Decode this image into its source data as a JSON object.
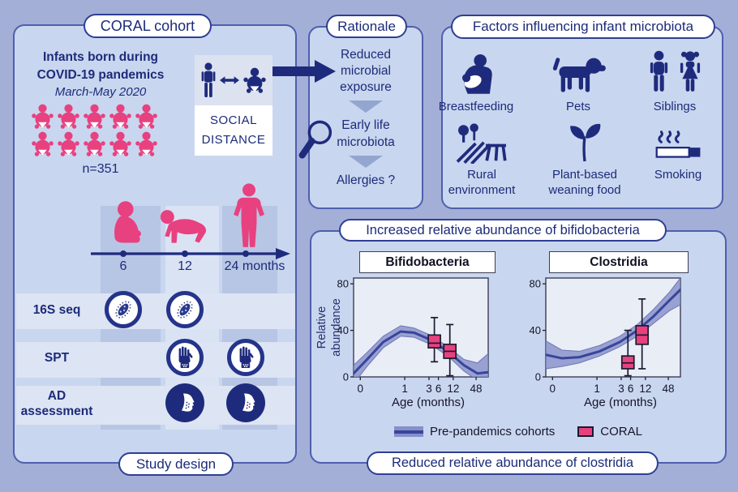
{
  "colors": {
    "background": "#a4afd7",
    "panel": "#c9d6ef",
    "panel_border": "#4d5fae",
    "navy": "#1e2b7d",
    "pink": "#e8417f",
    "plot_bg": "#e9edf6",
    "band": "#8690c8",
    "band_edge": "#6d77b8",
    "curve_line": "#39459b",
    "box_fill": "#e8417f",
    "box_stroke": "#1a1a30",
    "triangle": "#93a6cf"
  },
  "coral_panel": {
    "title": "CORAL cohort",
    "heading": {
      "line1": "Infants born during",
      "line2": "COVID-19 pandemics",
      "line3": "March-May 2020"
    },
    "cohort_size": "n=351",
    "cohort_icon_count": 10,
    "social_distance": {
      "line1": "SOCIAL",
      "line2": "DISTANCE"
    },
    "timeline_ticks": [
      "6",
      "12",
      "24 months"
    ],
    "assessments": [
      {
        "label": "16S seq",
        "icon": "bacteria-icon",
        "timepoints_months": [
          6,
          12
        ]
      },
      {
        "label": "SPT",
        "icon": "hand-icon",
        "timepoints_months": [
          12,
          24
        ]
      },
      {
        "label": "AD assessment",
        "icon": "face-eczema-icon",
        "timepoints_months": [
          12,
          24
        ]
      }
    ],
    "footer": "Study design"
  },
  "rationale_panel": {
    "title": "Rationale",
    "steps": [
      "Reduced microbial exposure",
      "Early life microbiota",
      "Allergies ?"
    ]
  },
  "factors_panel": {
    "title": "Factors influencing infant microbiota",
    "items": [
      {
        "label": "Breastfeeding",
        "icon": "breastfeeding-icon"
      },
      {
        "label": "Pets",
        "icon": "dog-icon"
      },
      {
        "label": "Siblings",
        "icon": "siblings-icon"
      },
      {
        "label": "Rural environment",
        "icon": "rural-environment-icon"
      },
      {
        "label": "Plant-based weaning food",
        "icon": "plant-icon"
      },
      {
        "label": "Smoking",
        "icon": "cigarette-icon"
      }
    ]
  },
  "results_panel": {
    "title_top": "Increased relative abundance of bifidobacteria",
    "title_bottom": "Reduced relative abundance of clostridia",
    "ylabel": "Relative abundance",
    "xlabel": "Age (months)",
    "legend": [
      {
        "label": "Pre-pandemics cohorts",
        "swatch": "band"
      },
      {
        "label": "CORAL",
        "swatch": "box"
      }
    ]
  },
  "chart_data": [
    {
      "type": "line+boxplot",
      "title": "Bifidobacteria",
      "xlabel": "Age (months)",
      "ylabel": "Relative abundance",
      "ylim": [
        0,
        85
      ],
      "yticks": [
        0,
        40,
        80
      ],
      "xticks": {
        "labels": [
          "0",
          "1",
          "3",
          "6",
          "12",
          "48"
        ],
        "fracs": [
          0.05,
          0.38,
          0.56,
          0.63,
          0.74,
          0.91
        ]
      },
      "curve": {
        "name": "Pre-pandemics cohorts",
        "points": [
          [
            0.0,
            3,
            -6,
            10
          ],
          [
            0.1,
            15,
            9,
            21
          ],
          [
            0.22,
            30,
            25,
            35
          ],
          [
            0.35,
            39,
            35,
            44
          ],
          [
            0.45,
            38,
            34,
            42
          ],
          [
            0.57,
            32,
            28,
            36
          ],
          [
            0.7,
            22,
            18,
            26
          ],
          [
            0.82,
            10,
            5,
            15
          ],
          [
            0.92,
            3,
            -3,
            12
          ],
          [
            1.0,
            4,
            -4,
            20
          ]
        ]
      },
      "boxplots": {
        "name": "CORAL",
        "items": [
          {
            "age_months": 6,
            "x_frac": 0.6,
            "whisker_low": 13,
            "q1": 25,
            "median": 29,
            "q3": 36,
            "whisker_high": 51
          },
          {
            "age_months": 12,
            "x_frac": 0.715,
            "whisker_low": 1,
            "q1": 16,
            "median": 22,
            "q3": 28,
            "whisker_high": 45
          }
        ]
      }
    },
    {
      "type": "line+boxplot",
      "title": "Clostridia",
      "xlabel": "Age (months)",
      "ylabel": "Relative abundance",
      "ylim": [
        0,
        85
      ],
      "yticks": [
        0,
        40,
        80
      ],
      "xticks": {
        "labels": [
          "0",
          "1",
          "3",
          "6",
          "12",
          "48"
        ],
        "fracs": [
          0.05,
          0.38,
          0.56,
          0.63,
          0.74,
          0.91
        ]
      },
      "curve": {
        "name": "Pre-pandemics cohorts",
        "points": [
          [
            0.0,
            19,
            7,
            31
          ],
          [
            0.12,
            16,
            9,
            23
          ],
          [
            0.25,
            17,
            12,
            22
          ],
          [
            0.4,
            22,
            18,
            27
          ],
          [
            0.55,
            30,
            26,
            35
          ],
          [
            0.68,
            40,
            35,
            45
          ],
          [
            0.8,
            52,
            46,
            58
          ],
          [
            0.92,
            66,
            57,
            73
          ],
          [
            1.0,
            75,
            62,
            85
          ]
        ]
      },
      "boxplots": {
        "name": "CORAL",
        "items": [
          {
            "age_months": 6,
            "x_frac": 0.61,
            "whisker_low": 1,
            "q1": 7,
            "median": 12,
            "q3": 18,
            "whisker_high": 40
          },
          {
            "age_months": 12,
            "x_frac": 0.715,
            "whisker_low": 7,
            "q1": 28,
            "median": 36,
            "q3": 44,
            "whisker_high": 67
          }
        ]
      }
    }
  ]
}
